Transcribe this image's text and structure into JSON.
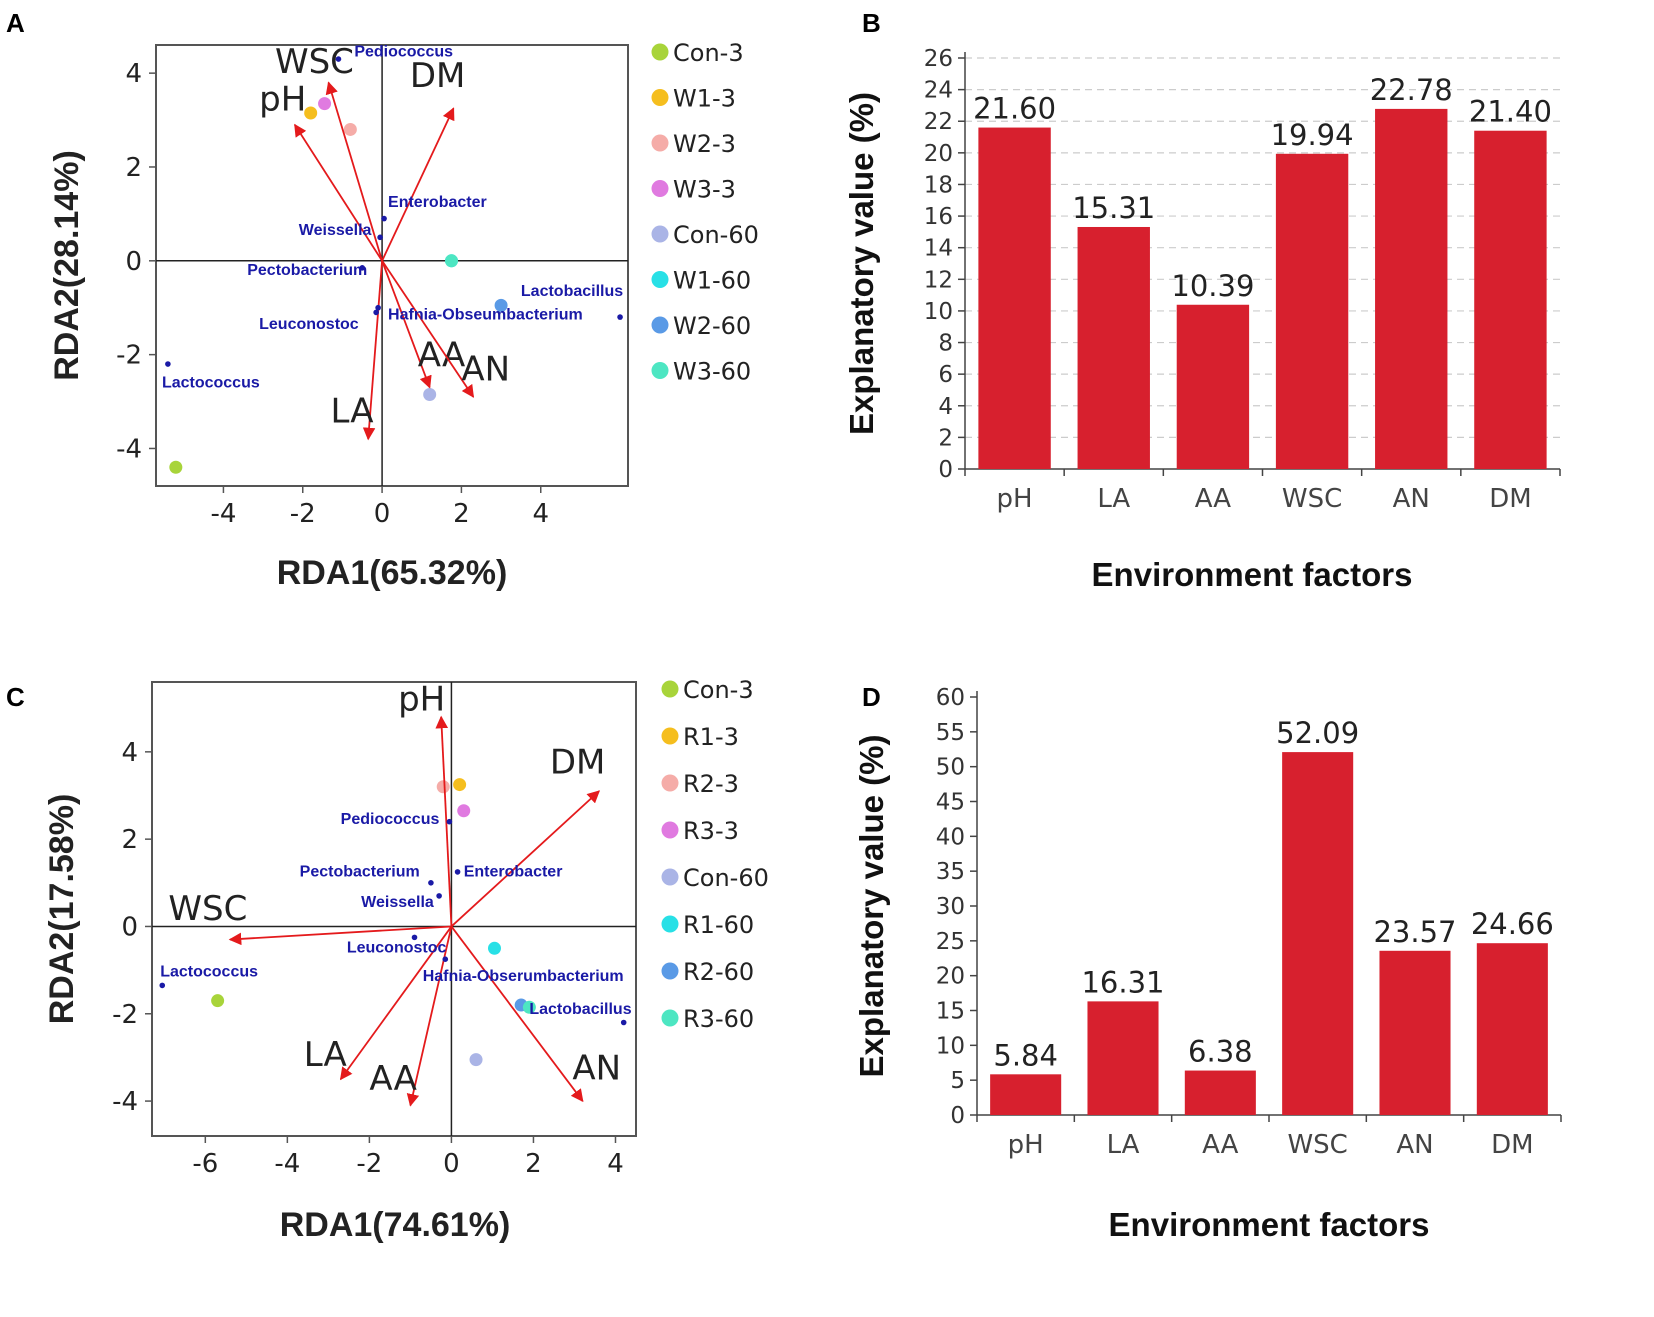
{
  "figure": {
    "panels": [
      "A",
      "B",
      "C",
      "D"
    ]
  },
  "colors": {
    "arrow": "#e41a1c",
    "species_point": "#1a1aa6",
    "bar": "#d7202e",
    "gridline": "#cccccc"
  },
  "chart_data": [
    {
      "panel": "A",
      "type": "scatter",
      "subtype": "rda-biplot",
      "xlabel": "RDA1(65.32%)",
      "ylabel": "RDA2(28.14%)",
      "xlim": [
        -5.7,
        6.2
      ],
      "ylim": [
        -4.8,
        4.6
      ],
      "xticks": [
        -4,
        -2,
        0,
        2,
        4
      ],
      "yticks": [
        -4,
        -2,
        0,
        2,
        4
      ],
      "xtick_labels": [
        "-4",
        "-2",
        "0",
        "2",
        "4"
      ],
      "ytick_labels": [
        "-4",
        "-2",
        "0",
        "2",
        "4"
      ],
      "arrows": [
        {
          "label": "WSC",
          "x": -1.35,
          "y": 3.8,
          "lx": -2.7,
          "ly": 4.0
        },
        {
          "label": "pH",
          "x": -2.2,
          "y": 2.9,
          "lx": -3.1,
          "ly": 3.2
        },
        {
          "label": "DM",
          "x": 1.8,
          "y": 3.25,
          "lx": 0.7,
          "ly": 3.7
        },
        {
          "label": "AA",
          "x": 1.2,
          "y": -2.7,
          "lx": 0.9,
          "ly": -2.25
        },
        {
          "label": "AN",
          "x": 2.3,
          "y": -2.9,
          "lx": 2.0,
          "ly": -2.55
        },
        {
          "label": "LA",
          "x": -0.35,
          "y": -3.8,
          "lx": -1.3,
          "ly": -3.45
        }
      ],
      "species": [
        {
          "label": "Pediococcus",
          "x": -1.1,
          "y": 4.3,
          "lx": -0.7,
          "ly": 4.35
        },
        {
          "label": "Enterobacter",
          "x": 0.05,
          "y": 0.9,
          "lx": 0.15,
          "ly": 1.15
        },
        {
          "label": "Weissella",
          "x": -0.05,
          "y": 0.5,
          "lx": -2.1,
          "ly": 0.55
        },
        {
          "label": "Pectobacterium",
          "x": -0.5,
          "y": -0.15,
          "lx": -3.4,
          "ly": -0.3
        },
        {
          "label": "Lactobacillus",
          "x": 6.0,
          "y": -1.2,
          "lx": 3.5,
          "ly": -0.75
        },
        {
          "label": "Leuconostoc",
          "x": -0.15,
          "y": -1.1,
          "lx": -3.1,
          "ly": -1.45
        },
        {
          "label": "Hafnia-Obseumbacterium",
          "x": -0.1,
          "y": -1.0,
          "lx": 0.15,
          "ly": -1.25
        },
        {
          "label": "Lactococcus",
          "x": -5.4,
          "y": -2.2,
          "lx": -5.55,
          "ly": -2.7
        }
      ],
      "samples": [
        {
          "label": "Con-3",
          "color": "#a8d43a",
          "x": -5.2,
          "y": -4.4
        },
        {
          "label": "W1-3",
          "color": "#f5be1e",
          "x": -1.8,
          "y": 3.15
        },
        {
          "label": "W2-3",
          "color": "#f5aca8",
          "x": -0.8,
          "y": 2.8
        },
        {
          "label": "W3-3",
          "color": "#e07ae0",
          "x": -1.45,
          "y": 3.35
        },
        {
          "label": "Con-60",
          "color": "#aab4e6",
          "x": 1.2,
          "y": -2.85
        },
        {
          "label": "W1-60",
          "color": "#28e0e6",
          "x": 1.75,
          "y": 0.0
        },
        {
          "label": "W2-60",
          "color": "#5a9ae6",
          "x": 3.0,
          "y": -0.95
        },
        {
          "label": "W3-60",
          "color": "#4de6c2",
          "x": 1.75,
          "y": 0.0
        }
      ],
      "legend": [
        "Con-3",
        "W1-3",
        "W2-3",
        "W3-3",
        "Con-60",
        "W1-60",
        "W2-60",
        "W3-60"
      ]
    },
    {
      "panel": "B",
      "type": "bar",
      "xlabel": "Environment factors",
      "ylabel": "Explanatory value  (%)",
      "categories": [
        "pH",
        "LA",
        "AA",
        "WSC",
        "AN",
        "DM"
      ],
      "values": [
        21.6,
        15.31,
        10.39,
        19.94,
        22.78,
        21.4
      ],
      "value_labels": [
        "21.60",
        "15.31",
        "10.39",
        "19.94",
        "22.78",
        "21.40"
      ],
      "ylim": [
        0,
        26
      ],
      "yticks": [
        0,
        2,
        4,
        6,
        8,
        10,
        12,
        14,
        16,
        18,
        20,
        22,
        24,
        26
      ],
      "ytick_labels": [
        "0",
        "2",
        "4",
        "6",
        "8",
        "10",
        "12",
        "14",
        "16",
        "18",
        "20",
        "22",
        "24",
        "26"
      ],
      "grid": true
    },
    {
      "panel": "C",
      "type": "scatter",
      "subtype": "rda-biplot",
      "xlabel": "RDA1(74.61%)",
      "ylabel": "RDA2(17.58%)",
      "xlim": [
        -7.3,
        4.5
      ],
      "ylim": [
        -4.8,
        5.6
      ],
      "xticks": [
        -6,
        -4,
        -2,
        0,
        2,
        4
      ],
      "yticks": [
        -4,
        -2,
        0,
        2,
        4
      ],
      "xtick_labels": [
        "-6",
        "-4",
        "-2",
        "0",
        "2",
        "4"
      ],
      "ytick_labels": [
        "-4",
        "-2",
        "0",
        "2",
        "4"
      ],
      "arrows": [
        {
          "label": "pH",
          "x": -0.25,
          "y": 4.8,
          "lx": -1.3,
          "ly": 4.95
        },
        {
          "label": "DM",
          "x": 3.6,
          "y": 3.1,
          "lx": 2.4,
          "ly": 3.5
        },
        {
          "label": "WSC",
          "x": -5.4,
          "y": -0.3,
          "lx": -6.9,
          "ly": 0.15
        },
        {
          "label": "LA",
          "x": -2.7,
          "y": -3.5,
          "lx": -3.6,
          "ly": -3.2
        },
        {
          "label": "AA",
          "x": -1.0,
          "y": -4.1,
          "lx": -2.0,
          "ly": -3.75
        },
        {
          "label": "AN",
          "x": 3.2,
          "y": -4.0,
          "lx": 2.95,
          "ly": -3.5
        }
      ],
      "species": [
        {
          "label": "Pediococcus",
          "x": -0.05,
          "y": 2.4,
          "lx": -2.7,
          "ly": 2.35
        },
        {
          "label": "Pectobacterium",
          "x": -0.5,
          "y": 1.0,
          "lx": -3.7,
          "ly": 1.15
        },
        {
          "label": "Enterobacter",
          "x": 0.15,
          "y": 1.25,
          "lx": 0.3,
          "ly": 1.15
        },
        {
          "label": "Weissella",
          "x": -0.3,
          "y": 0.7,
          "lx": -2.2,
          "ly": 0.45
        },
        {
          "label": "Leuconostoc",
          "x": -0.9,
          "y": -0.25,
          "lx": -2.55,
          "ly": -0.6
        },
        {
          "label": "Hafnia-Obserumbacterium",
          "x": -0.15,
          "y": -0.75,
          "lx": -0.7,
          "ly": -1.25
        },
        {
          "label": "Lactococcus",
          "x": -7.05,
          "y": -1.35,
          "lx": -7.1,
          "ly": -1.15
        },
        {
          "label": "Lactobacillus",
          "x": 4.2,
          "y": -2.2,
          "lx": 1.9,
          "ly": -2.0
        }
      ],
      "samples": [
        {
          "label": "Con-3",
          "color": "#a8d43a",
          "x": -5.7,
          "y": -1.7
        },
        {
          "label": "R1-3",
          "color": "#f5be1e",
          "x": 0.2,
          "y": 3.25
        },
        {
          "label": "R2-3",
          "color": "#f5aca8",
          "x": -0.2,
          "y": 3.2
        },
        {
          "label": "R3-3",
          "color": "#e07ae0",
          "x": 0.3,
          "y": 2.65
        },
        {
          "label": "Con-60",
          "color": "#aab4e6",
          "x": 0.6,
          "y": -3.05
        },
        {
          "label": "R1-60",
          "color": "#28e0e6",
          "x": 1.05,
          "y": -0.5
        },
        {
          "label": "R2-60",
          "color": "#5a9ae6",
          "x": 1.7,
          "y": -1.8
        },
        {
          "label": "R3-60",
          "color": "#4de6c2",
          "x": 1.9,
          "y": -1.85
        }
      ],
      "legend": [
        "Con-3",
        "R1-3",
        "R2-3",
        "R3-3",
        "Con-60",
        "R1-60",
        "R2-60",
        "R3-60"
      ]
    },
    {
      "panel": "D",
      "type": "bar",
      "xlabel": "Environment factors",
      "ylabel": "Explanatory value  (%)",
      "categories": [
        "pH",
        "LA",
        "AA",
        "WSC",
        "AN",
        "DM"
      ],
      "values": [
        5.84,
        16.31,
        6.38,
        52.09,
        23.57,
        24.66
      ],
      "value_labels": [
        "5.84",
        "16.31",
        "6.38",
        "52.09",
        "23.57",
        "24.66"
      ],
      "ylim": [
        0,
        60
      ],
      "yticks": [
        0,
        5,
        10,
        15,
        20,
        25,
        30,
        35,
        40,
        45,
        50,
        55,
        60
      ],
      "ytick_labels": [
        "0",
        "5",
        "10",
        "15",
        "20",
        "25",
        "30",
        "35",
        "40",
        "45",
        "50",
        "55",
        "60"
      ],
      "grid": false
    }
  ]
}
